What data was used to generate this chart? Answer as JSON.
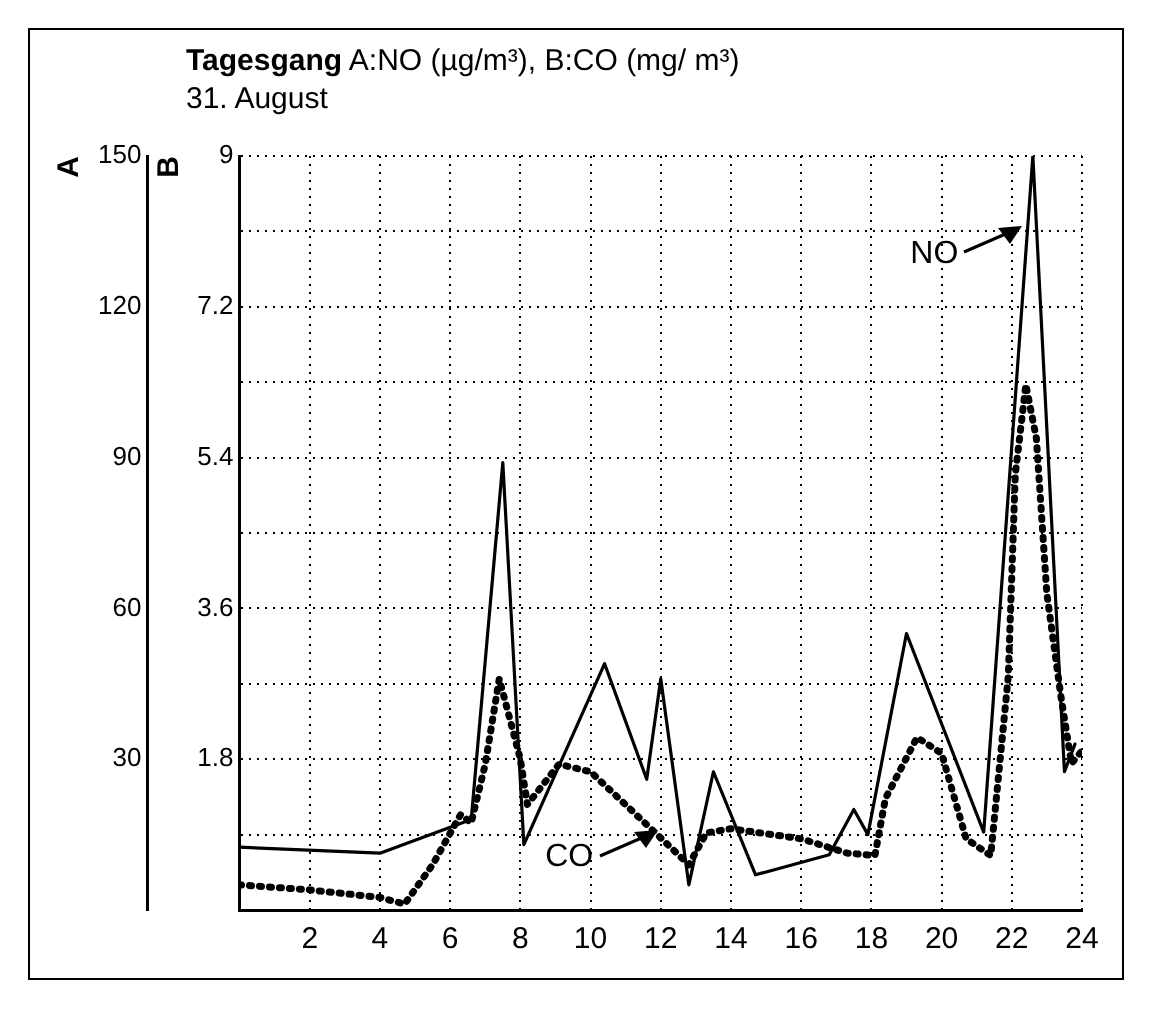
{
  "chart_data": {
    "type": "line",
    "title": "Tagesgang A:NO (µg/m³), B:CO (mg/ m³)",
    "subtitle": "31. August",
    "ylabel": "A",
    "y2label": "B",
    "xlim": [
      0,
      24
    ],
    "xticks": [
      {
        "value": 0,
        "label": null
      },
      2,
      4,
      6,
      8,
      10,
      12,
      14,
      16,
      18,
      20,
      22,
      24
    ],
    "ylim": [
      0,
      150
    ],
    "yticks": [
      {
        "value": 15,
        "label": null
      },
      30,
      {
        "value": 45,
        "label": null
      },
      60,
      {
        "value": 75,
        "label": null
      },
      90,
      {
        "value": 105,
        "label": null
      },
      120,
      {
        "value": 135,
        "label": null
      },
      150
    ],
    "y2lim": [
      0,
      9
    ],
    "y2ticks": [
      1.8,
      3.6,
      5.4,
      7.2,
      9
    ],
    "grid": true,
    "legend": false,
    "marker": "none",
    "series": [
      {
        "color": "#000000",
        "line_style": "solid",
        "x": [
          0,
          4,
          6.6,
          7.5,
          8.1,
          10.4,
          11.6,
          12.0,
          12.8,
          13.5,
          14.7,
          16.8,
          17.5,
          17.9,
          19.0,
          21.2,
          22.6,
          23.5,
          23.8
        ],
        "values": [
          12.5,
          11.3,
          18,
          89,
          13,
          49,
          26,
          46,
          5,
          27.5,
          7,
          11,
          20,
          15,
          55,
          15.5,
          150,
          27.5,
          33
        ]
      },
      {
        "color": "#000000",
        "line_style": "dotted",
        "axis": "y2",
        "x": [
          0,
          2,
          4,
          4.7,
          5.5,
          6.3,
          6.6,
          7.0,
          7.4,
          8.0,
          8.2,
          9.1,
          10,
          11.9,
          12.8,
          13.3,
          14,
          16,
          17.3,
          18.1,
          18.4,
          19.3,
          20,
          20.7,
          21.4,
          21.9,
          22.1,
          22.4,
          22.7,
          23.0,
          23.4,
          23.7,
          24
        ],
        "values": [
          0.3,
          0.24,
          0.15,
          0.07,
          0.54,
          1.14,
          1.04,
          1.74,
          2.76,
          1.8,
          1.26,
          1.74,
          1.65,
          0.9,
          0.54,
          0.92,
          0.97,
          0.85,
          0.68,
          0.65,
          1.33,
          2.06,
          1.87,
          0.85,
          0.65,
          2.79,
          5.2,
          6.27,
          5.63,
          3.77,
          2.55,
          1.75,
          1.9
        ]
      }
    ],
    "annotations": [
      {
        "text": "NO",
        "x": 22.3,
        "y": 136
      },
      {
        "text": "CO",
        "x": 11.9,
        "y": 16
      }
    ]
  }
}
